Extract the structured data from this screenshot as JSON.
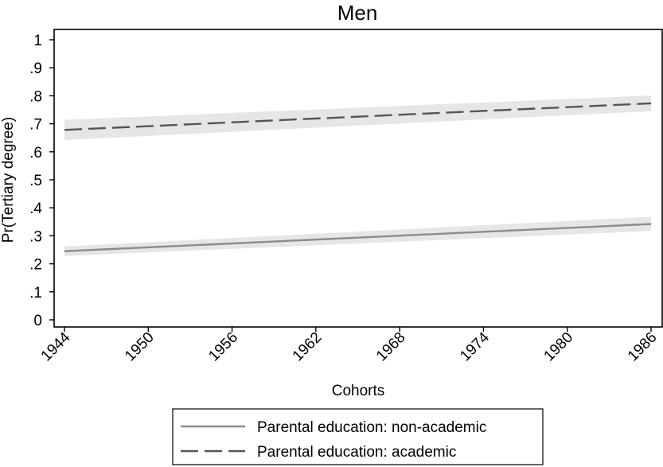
{
  "chart_data": {
    "type": "line",
    "title": "Men",
    "xlabel": "Cohorts",
    "ylabel": "Pr(Tertiary degree)",
    "x_ticks": [
      1944,
      1950,
      1956,
      1962,
      1968,
      1974,
      1980,
      1986
    ],
    "y_ticks": [
      0,
      0.1,
      0.2,
      0.3,
      0.4,
      0.5,
      0.6,
      0.7,
      0.8,
      0.9,
      1
    ],
    "y_tick_labels": [
      "0",
      ".1",
      ".2",
      ".3",
      ".4",
      ".5",
      ".6",
      ".7",
      ".8",
      ".9",
      "1"
    ],
    "xlim": [
      1944,
      1986
    ],
    "ylim": [
      0,
      1
    ],
    "grid": false,
    "legend_position": "bottom",
    "series": [
      {
        "name": "Parental education: non-academic",
        "style": "solid",
        "color": "#8c8c8c",
        "x": [
          1944,
          1986
        ],
        "y": [
          0.245,
          0.342
        ],
        "ci_lower": [
          0.228,
          0.317
        ],
        "ci_upper": [
          0.262,
          0.368
        ]
      },
      {
        "name": "Parental education: academic",
        "style": "dashed",
        "color": "#555555",
        "x": [
          1944,
          1986
        ],
        "y": [
          0.678,
          0.773
        ],
        "ci_lower": [
          0.642,
          0.745
        ],
        "ci_upper": [
          0.714,
          0.801
        ]
      }
    ],
    "ci_color": "#e6e6e6"
  }
}
